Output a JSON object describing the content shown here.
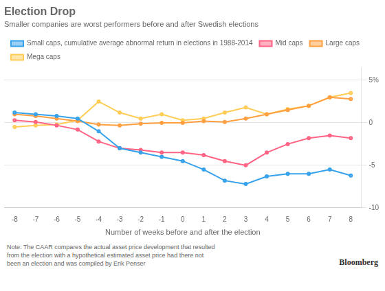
{
  "chart_data": {
    "type": "line",
    "title": "Election Drop",
    "subtitle": "Smaller companies are worst performers before and after Swedish elections",
    "xlabel": "Number of weeks before and after the election",
    "annotations": [
      "Note: The CAAR compares the actual asset price development that resulted\nfrom the election with a hypothetical estimated asset price had there not\nbeen an election and was compiled by Erik Penser",
      "Bloomberg"
    ],
    "x": [
      -8,
      -7,
      -6,
      -5,
      -4,
      -3,
      -2,
      -1,
      0,
      1,
      2,
      3,
      4,
      5,
      6,
      7,
      8
    ],
    "series": [
      {
        "name": "Small caps, cumulative average abnormal return in elections in 1988-2014",
        "values": [
          1.2,
          1.0,
          0.8,
          0.5,
          -1.0,
          -3.0,
          -3.5,
          -4.0,
          -4.5,
          -5.5,
          -6.8,
          -7.2,
          -6.3,
          -6.0,
          -6.0,
          -5.5,
          -6.2
        ]
      },
      {
        "name": "Mid caps",
        "values": [
          0.3,
          0.1,
          -0.3,
          -0.8,
          -2.2,
          -3.0,
          -3.2,
          -3.5,
          -3.5,
          -3.8,
          -4.5,
          -5.0,
          -3.5,
          -2.5,
          -1.8,
          -1.5,
          -1.8
        ]
      },
      {
        "name": "Large caps",
        "values": [
          1.0,
          0.8,
          0.5,
          0.2,
          -0.2,
          -0.3,
          -0.1,
          0.0,
          0.0,
          0.2,
          0.1,
          0.5,
          1.0,
          1.5,
          2.0,
          3.0,
          2.8
        ]
      },
      {
        "name": "Mega caps",
        "values": [
          -0.5,
          -0.3,
          -0.2,
          0.3,
          2.5,
          1.2,
          0.5,
          1.0,
          0.3,
          0.5,
          1.2,
          1.8,
          1.0,
          1.6,
          2.0,
          3.0,
          3.5
        ]
      }
    ],
    "xlim": [
      -8.5,
      8.5
    ],
    "xticks": [
      -8,
      -7,
      -6,
      -5,
      -4,
      -3,
      -2,
      -1,
      0,
      1,
      2,
      3,
      4,
      5,
      6,
      7,
      8
    ],
    "ylim": [
      -10,
      6.5
    ],
    "yticks": [
      -10,
      -5,
      0,
      {
        "value": 5,
        "label": "5%"
      }
    ],
    "grid": "y",
    "legend": "top"
  }
}
